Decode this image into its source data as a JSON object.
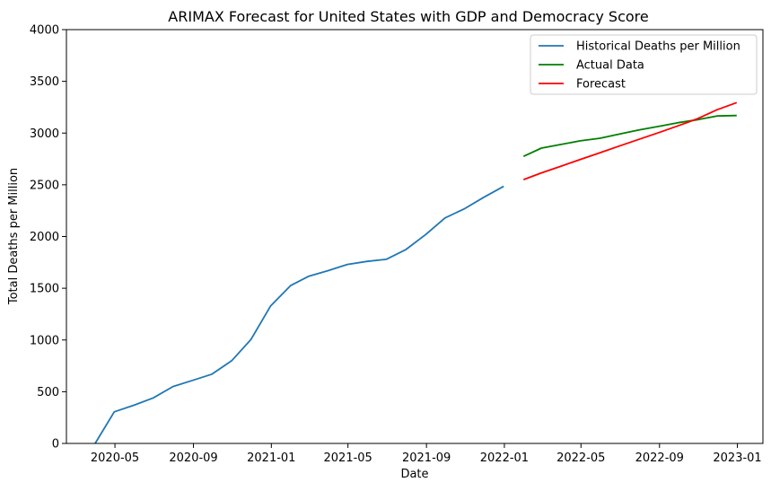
{
  "chart_data": {
    "type": "line",
    "title": "ARIMAX Forecast for United States with GDP and Democracy Score",
    "xlabel": "Date",
    "ylabel": "Total Deaths per Million",
    "xlim": [
      "2020-02-15",
      "2023-02-10"
    ],
    "ylim": [
      0,
      4000
    ],
    "x_ticks": [
      "2020-05",
      "2020-09",
      "2021-01",
      "2021-05",
      "2021-09",
      "2022-01",
      "2022-05",
      "2022-09",
      "2023-01"
    ],
    "y_ticks": [
      0,
      500,
      1000,
      1500,
      2000,
      2500,
      3000,
      3500,
      4000
    ],
    "grid": false,
    "legend_position": "top-right",
    "series": [
      {
        "name": "Historical Deaths per Million",
        "color": "#1f77b4",
        "points": [
          {
            "x": "2020-03-31",
            "y": 0
          },
          {
            "x": "2020-04-30",
            "y": 305
          },
          {
            "x": "2020-05-31",
            "y": 370
          },
          {
            "x": "2020-06-30",
            "y": 440
          },
          {
            "x": "2020-07-31",
            "y": 550
          },
          {
            "x": "2020-08-31",
            "y": 610
          },
          {
            "x": "2020-09-30",
            "y": 670
          },
          {
            "x": "2020-10-31",
            "y": 800
          },
          {
            "x": "2020-11-30",
            "y": 1005
          },
          {
            "x": "2020-12-31",
            "y": 1330
          },
          {
            "x": "2021-01-31",
            "y": 1525
          },
          {
            "x": "2021-02-28",
            "y": 1615
          },
          {
            "x": "2021-03-31",
            "y": 1670
          },
          {
            "x": "2021-04-30",
            "y": 1730
          },
          {
            "x": "2021-05-31",
            "y": 1760
          },
          {
            "x": "2021-06-30",
            "y": 1780
          },
          {
            "x": "2021-07-31",
            "y": 1875
          },
          {
            "x": "2021-08-31",
            "y": 2020
          },
          {
            "x": "2021-09-30",
            "y": 2180
          },
          {
            "x": "2021-10-31",
            "y": 2270
          },
          {
            "x": "2021-11-30",
            "y": 2380
          },
          {
            "x": "2021-12-31",
            "y": 2485
          }
        ]
      },
      {
        "name": "Actual Data",
        "color": "#008000",
        "points": [
          {
            "x": "2022-01-31",
            "y": 2775
          },
          {
            "x": "2022-02-28",
            "y": 2855
          },
          {
            "x": "2022-03-31",
            "y": 2890
          },
          {
            "x": "2022-04-30",
            "y": 2925
          },
          {
            "x": "2022-05-31",
            "y": 2950
          },
          {
            "x": "2022-06-30",
            "y": 2990
          },
          {
            "x": "2022-07-31",
            "y": 3030
          },
          {
            "x": "2022-08-31",
            "y": 3065
          },
          {
            "x": "2022-09-30",
            "y": 3100
          },
          {
            "x": "2022-10-31",
            "y": 3130
          },
          {
            "x": "2022-11-30",
            "y": 3165
          },
          {
            "x": "2022-12-31",
            "y": 3170
          }
        ]
      },
      {
        "name": "Forecast",
        "color": "#ff0000",
        "points": [
          {
            "x": "2022-01-31",
            "y": 2550
          },
          {
            "x": "2022-02-28",
            "y": 2615
          },
          {
            "x": "2022-03-31",
            "y": 2680
          },
          {
            "x": "2022-04-30",
            "y": 2745
          },
          {
            "x": "2022-05-31",
            "y": 2810
          },
          {
            "x": "2022-06-30",
            "y": 2875
          },
          {
            "x": "2022-07-31",
            "y": 2940
          },
          {
            "x": "2022-08-31",
            "y": 3005
          },
          {
            "x": "2022-09-30",
            "y": 3070
          },
          {
            "x": "2022-10-31",
            "y": 3140
          },
          {
            "x": "2022-11-30",
            "y": 3225
          },
          {
            "x": "2022-12-31",
            "y": 3295
          }
        ]
      }
    ]
  }
}
